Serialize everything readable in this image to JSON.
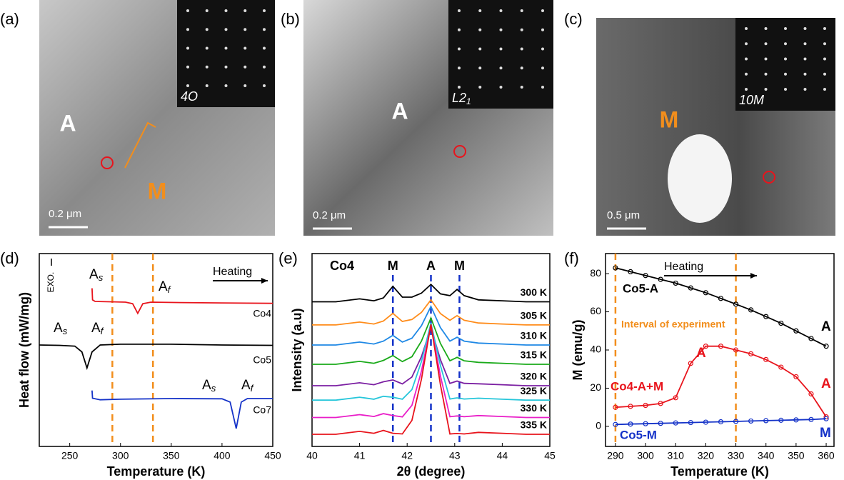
{
  "micrographs": [
    {
      "label": "(a)",
      "phases": [
        "A",
        "M"
      ],
      "scale": "0.2 μm",
      "inset": "4O"
    },
    {
      "label": "(b)",
      "phases": [
        "A"
      ],
      "scale": "0.2 μm",
      "inset": "L2",
      "inset_sub": "1"
    },
    {
      "label": "(c)",
      "phases": [
        "M"
      ],
      "scale": "0.5 μm",
      "inset": "10M"
    }
  ],
  "chart_data": [
    {
      "type": "line",
      "panel": "(d)",
      "xlabel": "Temperature (K)",
      "ylabel": "Heat flow (mW/mg)",
      "xlim": [
        220,
        450
      ],
      "xticks": [
        250,
        300,
        350,
        400,
        450
      ],
      "ylim": [
        0,
        10
      ],
      "vlines": [
        292,
        332
      ],
      "vline_color": "#f28e1c",
      "series": [
        {
          "name": "Co4",
          "color": "#e8141c",
          "x": [
            272,
            272.5,
            275,
            290,
            305,
            312,
            317,
            322,
            330,
            360,
            400,
            450
          ],
          "values": [
            8.2,
            7.6,
            7.52,
            7.5,
            7.48,
            7.4,
            6.9,
            7.4,
            7.48,
            7.46,
            7.44,
            7.42
          ]
        },
        {
          "name": "Co5",
          "color": "#000000",
          "x": [
            220,
            240,
            255,
            262,
            267,
            272,
            280,
            300,
            350,
            400,
            450
          ],
          "values": [
            5.26,
            5.24,
            5.2,
            4.9,
            4.07,
            4.9,
            5.26,
            5.3,
            5.3,
            5.26,
            5.24
          ]
        },
        {
          "name": "Co7",
          "color": "#1432c8",
          "x": [
            272,
            272.5,
            280,
            300,
            350,
            400,
            408,
            414,
            419,
            425,
            450
          ],
          "values": [
            2.9,
            2.5,
            2.42,
            2.45,
            2.48,
            2.47,
            2.3,
            0.93,
            2.3,
            2.48,
            2.48
          ]
        }
      ],
      "annotations": [
        {
          "text": "A",
          "sub": "s"
        },
        {
          "text": "A",
          "sub": "f"
        },
        {
          "text": "A",
          "sub": "s"
        },
        {
          "text": "A",
          "sub": "f"
        },
        {
          "text": "A",
          "sub": "s"
        },
        {
          "text": "A",
          "sub": "f"
        }
      ],
      "heating": "Heating",
      "exo": "EXO."
    },
    {
      "type": "line",
      "panel": "(e)",
      "title": "Co4",
      "xlabel": "2θ (degree)",
      "ylabel": "Intensity (a.u)",
      "xlim": [
        40,
        45
      ],
      "xticks": [
        40,
        41,
        42,
        43,
        44,
        45
      ],
      "ylim": [
        0,
        10
      ],
      "peaks": [
        {
          "x": 41.7,
          "label": "M"
        },
        {
          "x": 42.5,
          "label": "A"
        },
        {
          "x": 43.1,
          "label": "M"
        }
      ],
      "vline_color": "#1432c8",
      "x": [
        40,
        40.5,
        41,
        41.3,
        41.5,
        41.7,
        41.9,
        42.1,
        42.3,
        42.5,
        42.7,
        42.9,
        43.05,
        43.2,
        43.5,
        44,
        44.5,
        45
      ],
      "series": [
        {
          "name": "300 K",
          "color": "#000000",
          "values": [
            7.5,
            7.5,
            7.65,
            7.55,
            7.7,
            8.3,
            7.74,
            7.74,
            7.95,
            8.4,
            7.91,
            7.82,
            8.14,
            7.82,
            7.6,
            7.55,
            7.5,
            7.5
          ]
        },
        {
          "name": "305 K",
          "color": "#ff8c1a",
          "values": [
            6.3,
            6.3,
            6.45,
            6.35,
            6.5,
            6.9,
            6.48,
            6.58,
            6.95,
            7.6,
            6.89,
            6.54,
            6.78,
            6.54,
            6.4,
            6.35,
            6.3,
            6.3
          ]
        },
        {
          "name": "310 K",
          "color": "#1e88e5",
          "values": [
            5.26,
            5.26,
            5.41,
            5.31,
            5.46,
            5.76,
            5.41,
            5.61,
            6.26,
            7.26,
            6.16,
            5.46,
            5.66,
            5.46,
            5.36,
            5.31,
            5.26,
            5.26
          ]
        },
        {
          "name": "315 K",
          "color": "#1aaa1a",
          "values": [
            4.26,
            4.26,
            4.41,
            4.31,
            4.46,
            4.71,
            4.4,
            4.65,
            5.46,
            6.66,
            5.34,
            4.44,
            4.62,
            4.44,
            4.36,
            4.31,
            4.26,
            4.26
          ]
        },
        {
          "name": "320 K",
          "color": "#7b1fa2",
          "values": [
            3.15,
            3.15,
            3.3,
            3.2,
            3.35,
            3.45,
            3.24,
            3.6,
            4.65,
            6.15,
            4.5,
            3.27,
            3.39,
            3.27,
            3.25,
            3.2,
            3.15,
            3.15
          ]
        },
        {
          "name": "325 K",
          "color": "#26c6da",
          "values": [
            2.4,
            2.4,
            2.55,
            2.45,
            2.6,
            2.55,
            2.45,
            2.95,
            4.4,
            6.4,
            4.2,
            2.46,
            2.52,
            2.46,
            2.5,
            2.45,
            2.4,
            2.4
          ]
        },
        {
          "name": "330 K",
          "color": "#e91ec8",
          "values": [
            1.5,
            1.5,
            1.65,
            1.55,
            1.7,
            1.6,
            1.53,
            2.13,
            3.9,
            6.3,
            3.66,
            1.54,
            1.58,
            1.54,
            1.6,
            1.55,
            1.5,
            1.5
          ]
        },
        {
          "name": "335 K",
          "color": "#e8141c",
          "values": [
            0.63,
            0.63,
            0.78,
            0.68,
            0.83,
            0.68,
            0.65,
            1.35,
            3.48,
            6.33,
            3.2,
            0.65,
            0.67,
            0.65,
            0.73,
            0.68,
            0.63,
            0.63
          ]
        }
      ]
    },
    {
      "type": "line",
      "panel": "(f)",
      "xlabel": "Temperature (K)",
      "ylabel": "M (emu/g)",
      "markers": true,
      "xlim": [
        286.7,
        362.6
      ],
      "xticks": [
        290,
        300,
        310,
        320,
        330,
        340,
        350,
        360
      ],
      "ylim": [
        -10.5,
        90.5
      ],
      "yticks": [
        0,
        20,
        40,
        60,
        80
      ],
      "vlines": [
        290,
        330
      ],
      "vline_color": "#f28e1c",
      "x": [
        290,
        295,
        300,
        305,
        310,
        315,
        320,
        325,
        330,
        335,
        340,
        345,
        350,
        355,
        360
      ],
      "series": [
        {
          "name": "Co5-A",
          "color": "#000000",
          "values": [
            83,
            81,
            79,
            77,
            75,
            72.5,
            70,
            67,
            64,
            61,
            57.5,
            54,
            50,
            46,
            42
          ]
        },
        {
          "name": "Co4-A+M",
          "color": "#e8141c",
          "values": [
            10,
            10.5,
            11,
            12,
            15,
            33,
            42,
            42,
            40,
            38,
            35,
            31,
            26,
            17,
            5
          ]
        },
        {
          "name": "Co5-M",
          "color": "#1432c8",
          "values": [
            1,
            1.2,
            1.4,
            1.6,
            1.8,
            2,
            2.2,
            2.4,
            2.6,
            2.8,
            3,
            3.2,
            3.4,
            3.6,
            4
          ]
        }
      ],
      "annotations": [
        {
          "text": "A"
        },
        {
          "text": "A"
        },
        {
          "text": "A"
        },
        {
          "text": "M"
        }
      ],
      "heating": "Heating",
      "interval": "Interval of experiment"
    }
  ]
}
